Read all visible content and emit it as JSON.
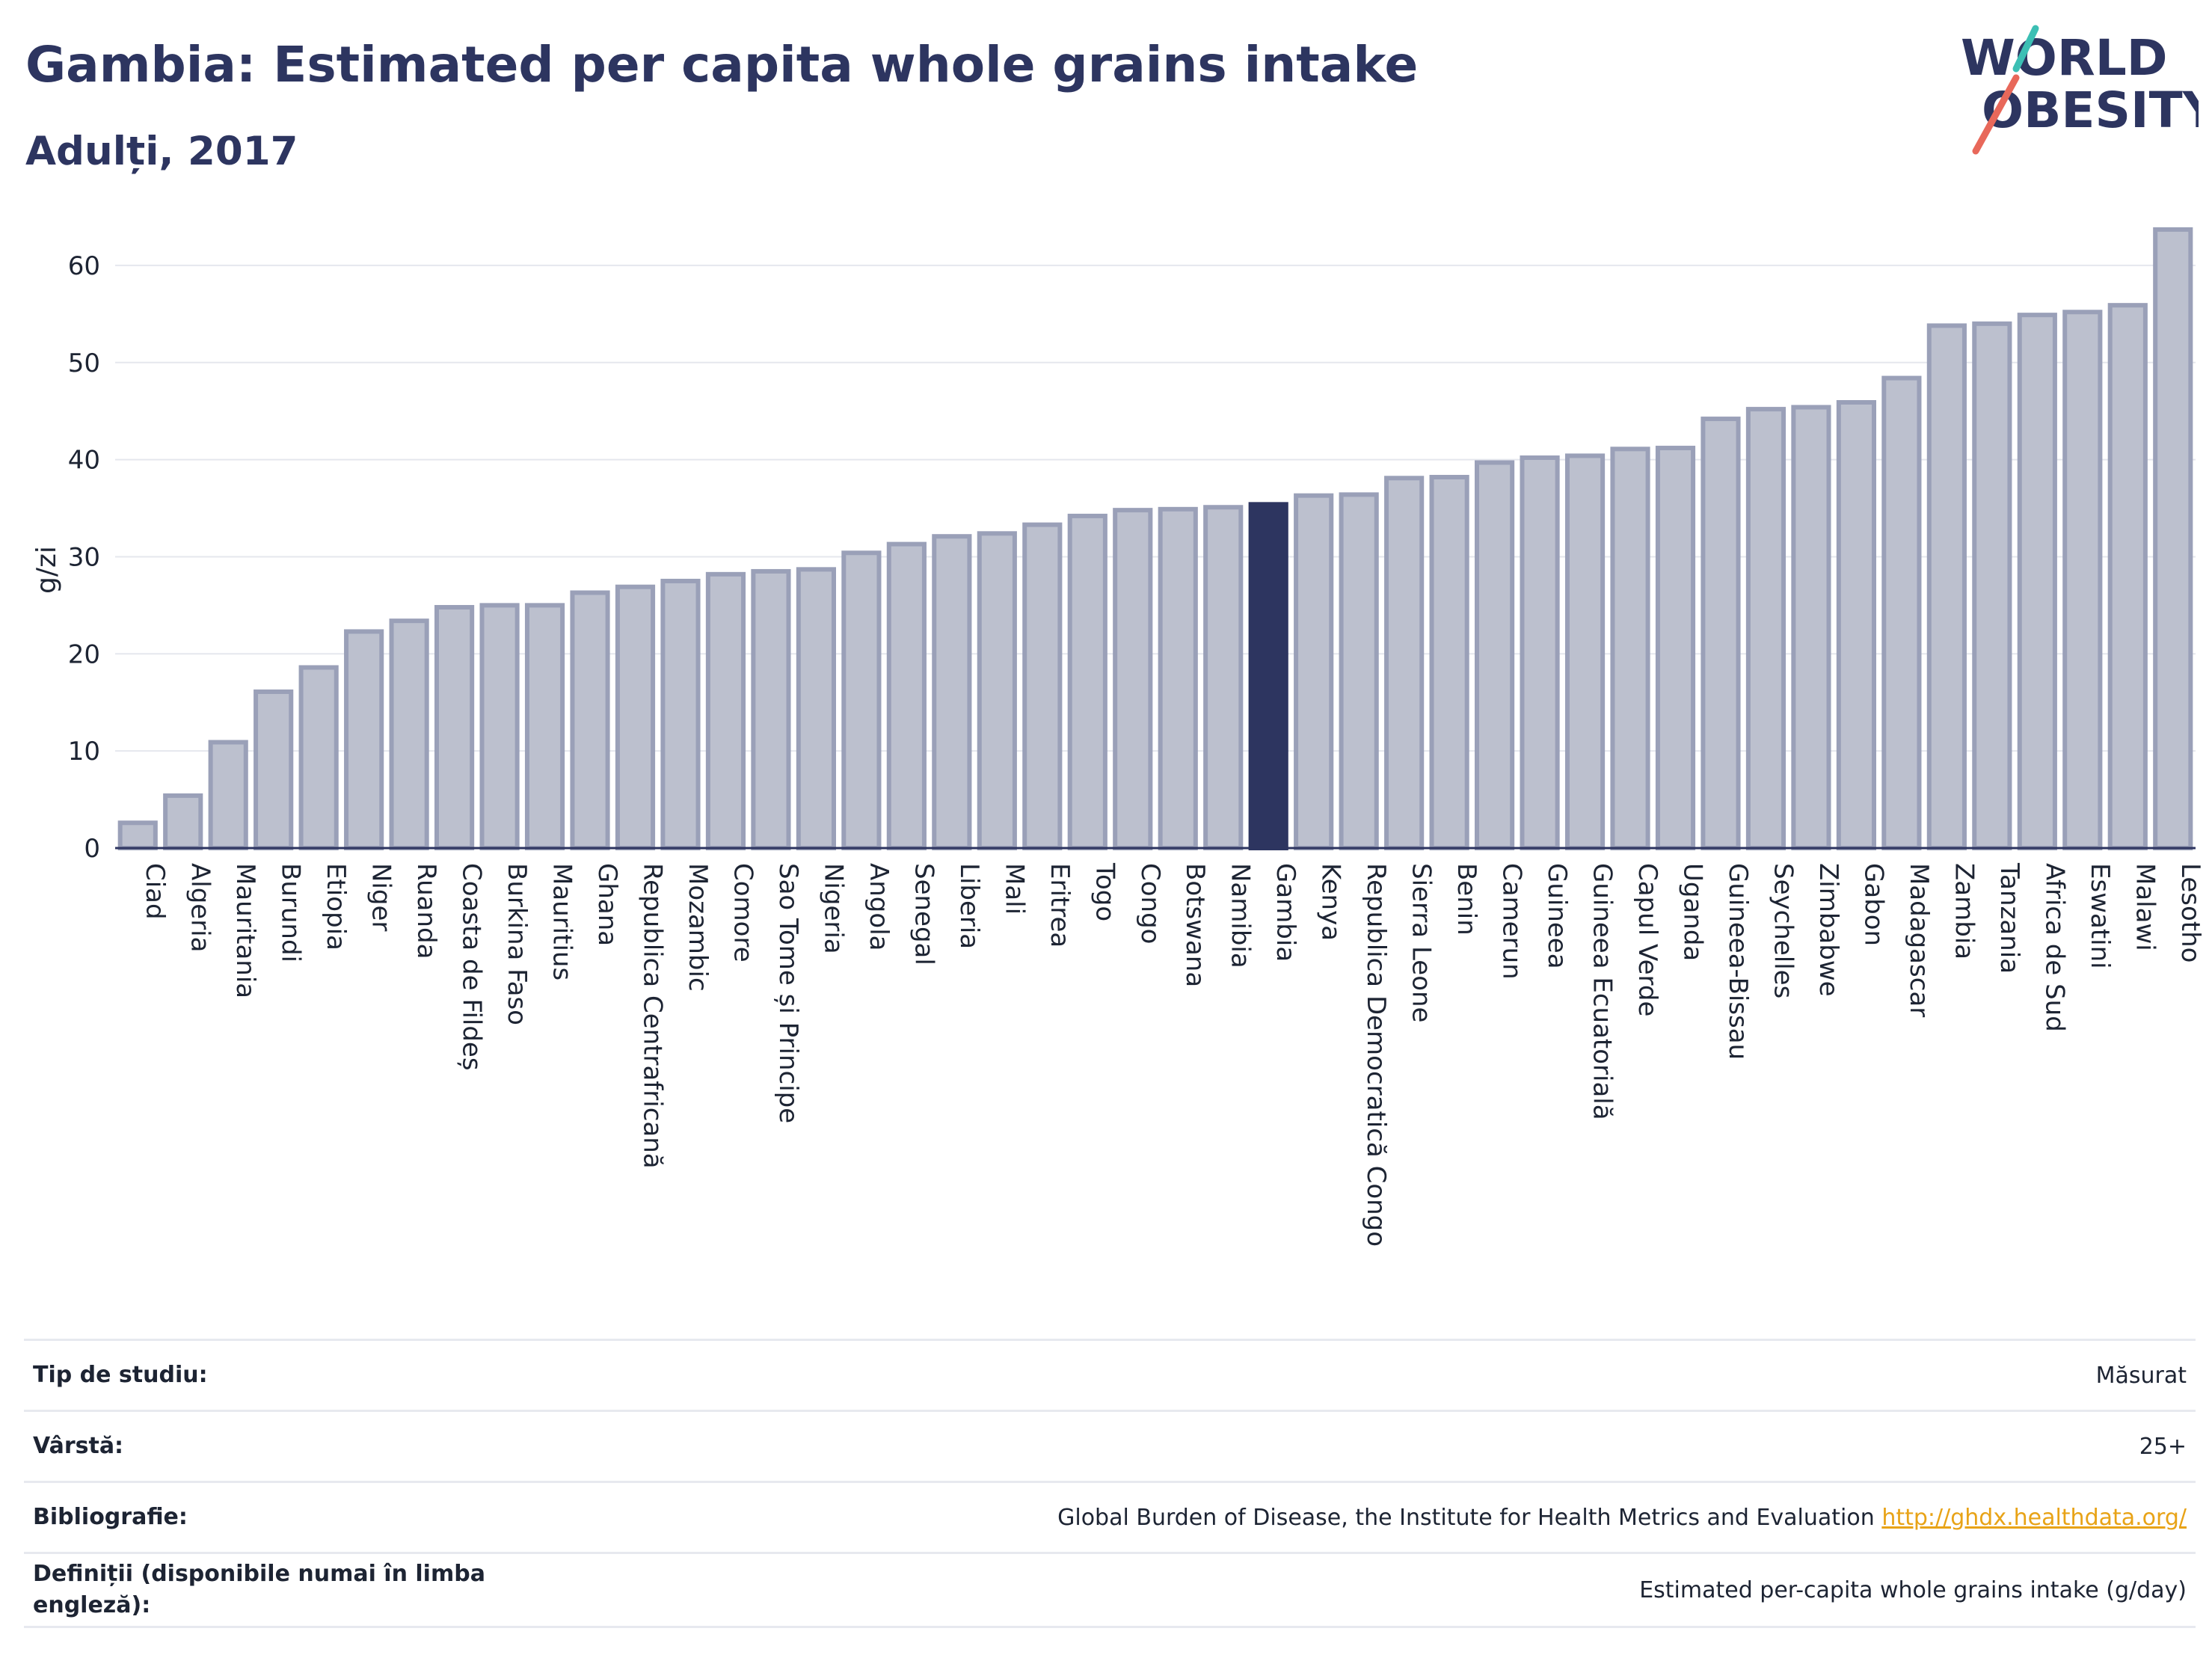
{
  "header": {
    "title": "Gambia: Estimated per capita whole grains intake",
    "subtitle": "Adulți, 2017"
  },
  "logo": {
    "line1": "WORLD",
    "line2": "OBESITY"
  },
  "colors": {
    "bar": "#bcc0ce",
    "bar_edge": "#9aa0b8",
    "highlight": "#2d3560",
    "grid": "#e5e7ee",
    "text": "#1d2433"
  },
  "chart_data": {
    "type": "bar",
    "ylabel": "g/zi",
    "ylim": [
      0,
      65
    ],
    "yticks": [
      0,
      10,
      20,
      30,
      40,
      50,
      60
    ],
    "grid": true,
    "highlight": "Gambia",
    "categories": [
      "Ciad",
      "Algeria",
      "Mauritania",
      "Burundi",
      "Etiopia",
      "Niger",
      "Ruanda",
      "Coasta de Fildeș",
      "Burkina Faso",
      "Mauritius",
      "Ghana",
      "Republica Centrafricană",
      "Mozambic",
      "Comore",
      "Sao Tome și Principe",
      "Nigeria",
      "Angola",
      "Senegal",
      "Liberia",
      "Mali",
      "Eritrea",
      "Togo",
      "Congo",
      "Botswana",
      "Namibia",
      "Gambia",
      "Kenya",
      "Republica Democratică Congo",
      "Sierra Leone",
      "Benin",
      "Camerun",
      "Guineea",
      "Guineea Ecuatorială",
      "Capul Verde",
      "Uganda",
      "Guineea-Bissau",
      "Seychelles",
      "Zimbabwe",
      "Gabon",
      "Madagascar",
      "Zambia",
      "Tanzania",
      "Africa de Sud",
      "Eswatini",
      "Malawi",
      "Lesotho"
    ],
    "values": [
      2.6,
      5.4,
      10.9,
      16.1,
      18.6,
      22.3,
      23.4,
      24.8,
      25.0,
      25.0,
      26.3,
      26.9,
      27.5,
      28.2,
      28.5,
      28.7,
      30.4,
      31.3,
      32.1,
      32.4,
      33.3,
      34.2,
      34.8,
      34.9,
      35.1,
      35.4,
      36.3,
      36.4,
      38.1,
      38.2,
      39.7,
      40.2,
      40.4,
      41.1,
      41.2,
      44.2,
      45.2,
      45.4,
      45.9,
      48.4,
      53.8,
      54.0,
      54.9,
      55.2,
      55.9,
      63.7
    ]
  },
  "info": [
    {
      "key": "Tip de studiu:",
      "value": "Măsurat"
    },
    {
      "key": "Vârstă:",
      "value": "25+"
    },
    {
      "key": "Bibliografie:",
      "value": "Global Burden of Disease, the Institute for Health Metrics and Evaluation",
      "link": "http://ghdx.healthdata.org/"
    },
    {
      "key": "Definiții (disponibile numai în limba engleză):",
      "value": "Estimated per-capita whole grains intake (g/day)"
    }
  ]
}
